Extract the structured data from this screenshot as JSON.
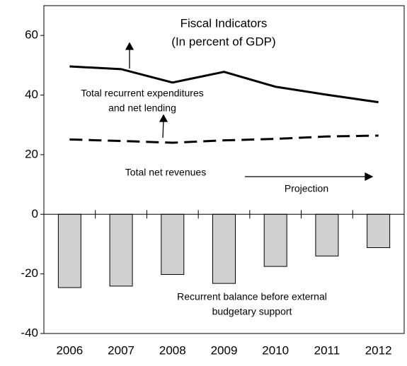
{
  "chart_data": {
    "type": "bar-line",
    "title": "Fiscal Indicators",
    "subtitle": "(In percent of GDP)",
    "categories": [
      "2006",
      "2007",
      "2008",
      "2009",
      "2010",
      "2011",
      "2012"
    ],
    "series": [
      {
        "kind": "bar",
        "color": "#d0d0d0",
        "values": [
          -24.6,
          -24.1,
          -20.2,
          -23.2,
          -17.5,
          -14.0,
          -11.2
        ]
      },
      {
        "kind": "line",
        "color": "#000000",
        "dash": false,
        "values": [
          49.6,
          48.7,
          44.2,
          47.8,
          42.8,
          40.1,
          37.6
        ]
      },
      {
        "kind": "line",
        "color": "#000000",
        "dash": true,
        "values": [
          25.1,
          24.6,
          24.0,
          24.8,
          25.3,
          26.1,
          26.4
        ]
      }
    ],
    "annotations": [
      "Total recurrent expenditures",
      "and net lending",
      "Total net revenues",
      "Projection",
      "Recurrent balance before external",
      "budgetary support"
    ],
    "ylim": [
      -40,
      70
    ],
    "yticks": [
      -40,
      -20,
      0,
      20,
      40,
      60
    ]
  }
}
